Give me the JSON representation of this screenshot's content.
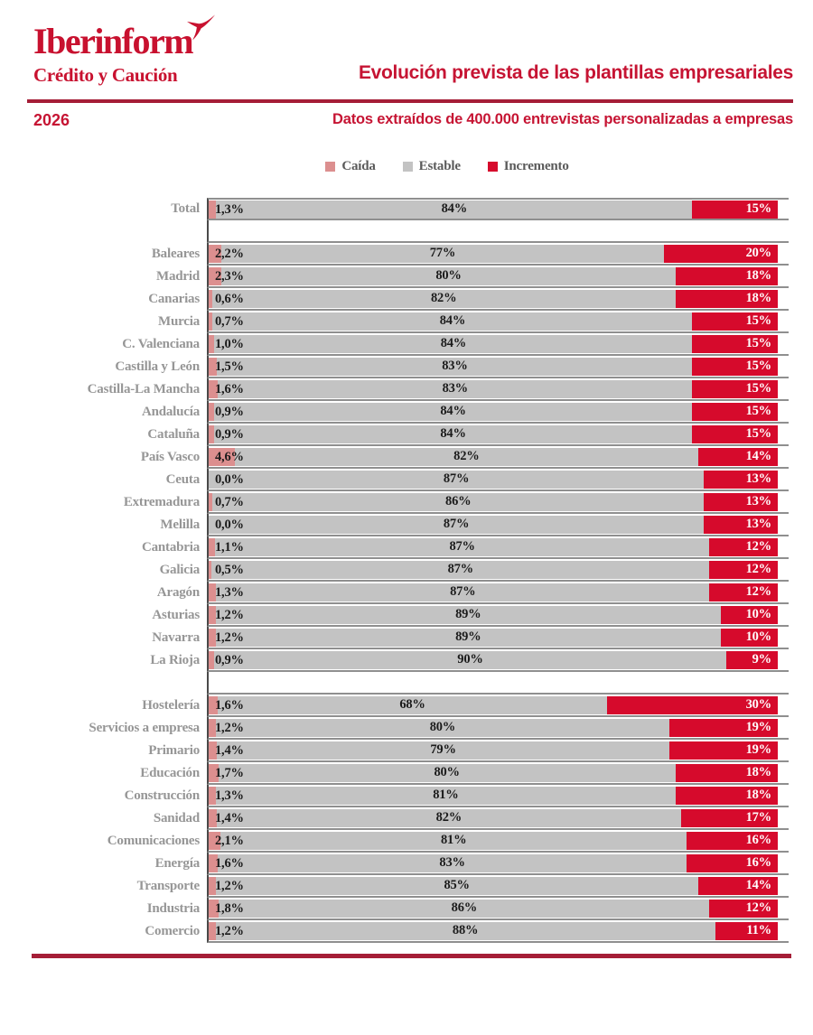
{
  "colors": {
    "brand_red": "#c8112f",
    "title_red": "#c61433",
    "rule_red": "#a51e37",
    "caida": "#dc8f8f",
    "estable": "#c3c3c3",
    "incremento": "#d60a2c"
  },
  "brand": {
    "name": "Iberinform",
    "subtitle": "Crédito y Caución"
  },
  "header": {
    "title": "Evolución prevista de las plantillas empresariales",
    "year": "2026",
    "subtitle": "Datos extraídos de 400.000 entrevistas personalizadas a empresas"
  },
  "legend": {
    "items": [
      {
        "label": "Caída",
        "color": "#dc8f8f"
      },
      {
        "label": "Estable",
        "color": "#c3c3c3"
      },
      {
        "label": "Incremento",
        "color": "#d60a2c"
      }
    ]
  },
  "chart_data": {
    "type": "bar",
    "variant": "stacked-horizontal",
    "unit": "%",
    "series_names": [
      "Caída",
      "Estable",
      "Incremento"
    ],
    "colors": {
      "caida": "#dc8f8f",
      "estable": "#c3c3c3",
      "incremento": "#d60a2c"
    },
    "xlim": [
      0,
      100
    ],
    "groups": [
      {
        "name": "total",
        "rows": [
          {
            "label": "Total",
            "values": [
              1.3,
              84,
              15
            ],
            "labels": [
              "1,3%",
              "84%",
              "15%"
            ]
          }
        ]
      },
      {
        "name": "comunidades",
        "rows": [
          {
            "label": "Baleares",
            "values": [
              2.2,
              77,
              20
            ],
            "labels": [
              "2,2%",
              "77%",
              "20%"
            ]
          },
          {
            "label": "Madrid",
            "values": [
              2.3,
              80,
              18
            ],
            "labels": [
              "2,3%",
              "80%",
              "18%"
            ]
          },
          {
            "label": "Canarias",
            "values": [
              0.6,
              82,
              18
            ],
            "labels": [
              "0,6%",
              "82%",
              "18%"
            ]
          },
          {
            "label": "Murcia",
            "values": [
              0.7,
              84,
              15
            ],
            "labels": [
              "0,7%",
              "84%",
              "15%"
            ]
          },
          {
            "label": "C. Valenciana",
            "values": [
              1.0,
              84,
              15
            ],
            "labels": [
              "1,0%",
              "84%",
              "15%"
            ]
          },
          {
            "label": "Castilla y León",
            "values": [
              1.5,
              83,
              15
            ],
            "labels": [
              "1,5%",
              "83%",
              "15%"
            ]
          },
          {
            "label": "Castilla-La Mancha",
            "values": [
              1.6,
              83,
              15
            ],
            "labels": [
              "1,6%",
              "83%",
              "15%"
            ]
          },
          {
            "label": "Andalucía",
            "values": [
              0.9,
              84,
              15
            ],
            "labels": [
              "0,9%",
              "84%",
              "15%"
            ]
          },
          {
            "label": "Cataluña",
            "values": [
              0.9,
              84,
              15
            ],
            "labels": [
              "0,9%",
              "84%",
              "15%"
            ]
          },
          {
            "label": "País Vasco",
            "values": [
              4.6,
              82,
              14
            ],
            "labels": [
              "4,6%",
              "82%",
              "14%"
            ]
          },
          {
            "label": "Ceuta",
            "values": [
              0.0,
              87,
              13
            ],
            "labels": [
              "0,0%",
              "87%",
              "13%"
            ]
          },
          {
            "label": "Extremadura",
            "values": [
              0.7,
              86,
              13
            ],
            "labels": [
              "0,7%",
              "86%",
              "13%"
            ]
          },
          {
            "label": "Melilla",
            "values": [
              0.0,
              87,
              13
            ],
            "labels": [
              "0,0%",
              "87%",
              "13%"
            ]
          },
          {
            "label": "Cantabria",
            "values": [
              1.1,
              87,
              12
            ],
            "labels": [
              "1,1%",
              "87%",
              "12%"
            ]
          },
          {
            "label": "Galicia",
            "values": [
              0.5,
              87,
              12
            ],
            "labels": [
              "0,5%",
              "87%",
              "12%"
            ]
          },
          {
            "label": "Aragón",
            "values": [
              1.3,
              87,
              12
            ],
            "labels": [
              "1,3%",
              "87%",
              "12%"
            ]
          },
          {
            "label": "Asturias",
            "values": [
              1.2,
              89,
              10
            ],
            "labels": [
              "1,2%",
              "89%",
              "10%"
            ]
          },
          {
            "label": "Navarra",
            "values": [
              1.2,
              89,
              10
            ],
            "labels": [
              "1,2%",
              "89%",
              "10%"
            ]
          },
          {
            "label": "La Rioja",
            "values": [
              0.9,
              90,
              9
            ],
            "labels": [
              "0,9%",
              "90%",
              "9%"
            ]
          }
        ]
      },
      {
        "name": "sectores",
        "rows": [
          {
            "label": "Hostelería",
            "values": [
              1.6,
              68,
              30
            ],
            "labels": [
              "1,6%",
              "68%",
              "30%"
            ]
          },
          {
            "label": "Servicios a empresa",
            "values": [
              1.2,
              80,
              19
            ],
            "labels": [
              "1,2%",
              "80%",
              "19%"
            ]
          },
          {
            "label": "Primario",
            "values": [
              1.4,
              79,
              19
            ],
            "labels": [
              "1,4%",
              "79%",
              "19%"
            ]
          },
          {
            "label": "Educación",
            "values": [
              1.7,
              80,
              18
            ],
            "labels": [
              "1,7%",
              "80%",
              "18%"
            ]
          },
          {
            "label": "Construcción",
            "values": [
              1.3,
              81,
              18
            ],
            "labels": [
              "1,3%",
              "81%",
              "18%"
            ]
          },
          {
            "label": "Sanidad",
            "values": [
              1.4,
              82,
              17
            ],
            "labels": [
              "1,4%",
              "82%",
              "17%"
            ]
          },
          {
            "label": "Comunicaciones",
            "values": [
              2.1,
              81,
              16
            ],
            "labels": [
              "2,1%",
              "81%",
              "16%"
            ]
          },
          {
            "label": "Energía",
            "values": [
              1.6,
              83,
              16
            ],
            "labels": [
              "1,6%",
              "83%",
              "16%"
            ]
          },
          {
            "label": "Transporte",
            "values": [
              1.2,
              85,
              14
            ],
            "labels": [
              "1,2%",
              "85%",
              "14%"
            ]
          },
          {
            "label": "Industria",
            "values": [
              1.8,
              86,
              12
            ],
            "labels": [
              "1,8%",
              "86%",
              "12%"
            ]
          },
          {
            "label": "Comercio",
            "values": [
              1.2,
              88,
              11
            ],
            "labels": [
              "1,2%",
              "88%",
              "11%"
            ]
          }
        ]
      }
    ]
  }
}
